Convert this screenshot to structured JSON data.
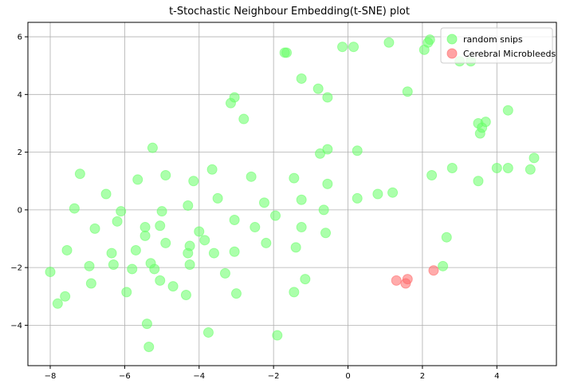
{
  "chart_data": {
    "type": "scatter",
    "title": "t-Stochastic Neighbour Embedding(t-SNE) plot",
    "xlabel": "",
    "ylabel": "",
    "xlim": [
      -8.6,
      5.6
    ],
    "ylim": [
      -5.4,
      6.5
    ],
    "xticks": [
      -8,
      -6,
      -4,
      -2,
      0,
      2,
      4
    ],
    "yticks": [
      -4,
      -2,
      0,
      2,
      4,
      6
    ],
    "grid": true,
    "legend_position": "top-right",
    "series": [
      {
        "name": "random snips",
        "color": "#66ff66",
        "points": [
          [
            -8.0,
            -2.15
          ],
          [
            -7.8,
            -3.25
          ],
          [
            -7.6,
            -3.0
          ],
          [
            -7.55,
            -1.4
          ],
          [
            -7.35,
            0.05
          ],
          [
            -7.2,
            1.25
          ],
          [
            -6.95,
            -1.95
          ],
          [
            -6.9,
            -2.55
          ],
          [
            -6.8,
            -0.65
          ],
          [
            -6.5,
            0.55
          ],
          [
            -6.35,
            -1.5
          ],
          [
            -6.3,
            -1.9
          ],
          [
            -6.2,
            -0.4
          ],
          [
            -6.1,
            -0.05
          ],
          [
            -5.95,
            -2.85
          ],
          [
            -5.8,
            -2.05
          ],
          [
            -5.7,
            -1.4
          ],
          [
            -5.65,
            1.05
          ],
          [
            -5.45,
            -0.6
          ],
          [
            -5.45,
            -0.9
          ],
          [
            -5.4,
            -3.95
          ],
          [
            -5.35,
            -4.75
          ],
          [
            -5.3,
            -1.85
          ],
          [
            -5.25,
            2.15
          ],
          [
            -5.2,
            -2.05
          ],
          [
            -5.05,
            -2.45
          ],
          [
            -5.05,
            -0.55
          ],
          [
            -5.0,
            -0.05
          ],
          [
            -4.9,
            1.2
          ],
          [
            -4.9,
            -1.15
          ],
          [
            -4.7,
            -2.65
          ],
          [
            -4.35,
            -2.95
          ],
          [
            -4.3,
            -1.5
          ],
          [
            -4.3,
            0.15
          ],
          [
            -4.25,
            -1.9
          ],
          [
            -4.25,
            -1.25
          ],
          [
            -4.15,
            1.0
          ],
          [
            -4.0,
            -0.75
          ],
          [
            -3.85,
            -1.05
          ],
          [
            -3.75,
            -4.25
          ],
          [
            -3.65,
            1.4
          ],
          [
            -3.6,
            -1.5
          ],
          [
            -3.5,
            0.4
          ],
          [
            -3.3,
            -2.2
          ],
          [
            -3.15,
            3.7
          ],
          [
            -3.05,
            3.9
          ],
          [
            -3.05,
            -0.35
          ],
          [
            -3.05,
            -1.45
          ],
          [
            -3.0,
            -2.9
          ],
          [
            -2.8,
            3.15
          ],
          [
            -2.6,
            1.15
          ],
          [
            -2.5,
            -0.6
          ],
          [
            -2.25,
            0.25
          ],
          [
            -2.2,
            -1.15
          ],
          [
            -1.95,
            -0.2
          ],
          [
            -1.9,
            -4.35
          ],
          [
            -1.7,
            5.45
          ],
          [
            -1.65,
            5.45
          ],
          [
            -1.45,
            1.1
          ],
          [
            -1.45,
            -2.85
          ],
          [
            -1.4,
            -1.3
          ],
          [
            -1.25,
            4.55
          ],
          [
            -1.25,
            0.35
          ],
          [
            -1.25,
            -0.6
          ],
          [
            -1.15,
            -2.4
          ],
          [
            -0.8,
            4.2
          ],
          [
            -0.75,
            1.95
          ],
          [
            -0.65,
            0.0
          ],
          [
            -0.6,
            -0.8
          ],
          [
            -0.55,
            2.1
          ],
          [
            -0.55,
            3.9
          ],
          [
            -0.55,
            0.9
          ],
          [
            -0.15,
            5.65
          ],
          [
            0.15,
            5.65
          ],
          [
            0.25,
            2.05
          ],
          [
            0.25,
            0.4
          ],
          [
            0.8,
            0.55
          ],
          [
            1.1,
            5.8
          ],
          [
            1.2,
            0.6
          ],
          [
            1.6,
            4.1
          ],
          [
            2.05,
            5.55
          ],
          [
            2.15,
            5.8
          ],
          [
            2.2,
            5.9
          ],
          [
            2.25,
            1.2
          ],
          [
            2.55,
            -1.95
          ],
          [
            2.65,
            -0.95
          ],
          [
            2.8,
            1.45
          ],
          [
            3.0,
            5.15
          ],
          [
            3.3,
            5.15
          ],
          [
            3.5,
            3.0
          ],
          [
            3.5,
            1.0
          ],
          [
            3.55,
            2.65
          ],
          [
            3.6,
            2.85
          ],
          [
            3.7,
            3.05
          ],
          [
            4.0,
            1.45
          ],
          [
            4.3,
            3.45
          ],
          [
            4.3,
            1.45
          ],
          [
            4.9,
            1.4
          ],
          [
            5.0,
            1.8
          ]
        ]
      },
      {
        "name": "Cerebral Microbleeds",
        "color": "#ff6666",
        "points": [
          [
            1.3,
            -2.45
          ],
          [
            1.55,
            -2.55
          ],
          [
            1.6,
            -2.4
          ],
          [
            2.3,
            -2.1
          ]
        ]
      }
    ]
  }
}
